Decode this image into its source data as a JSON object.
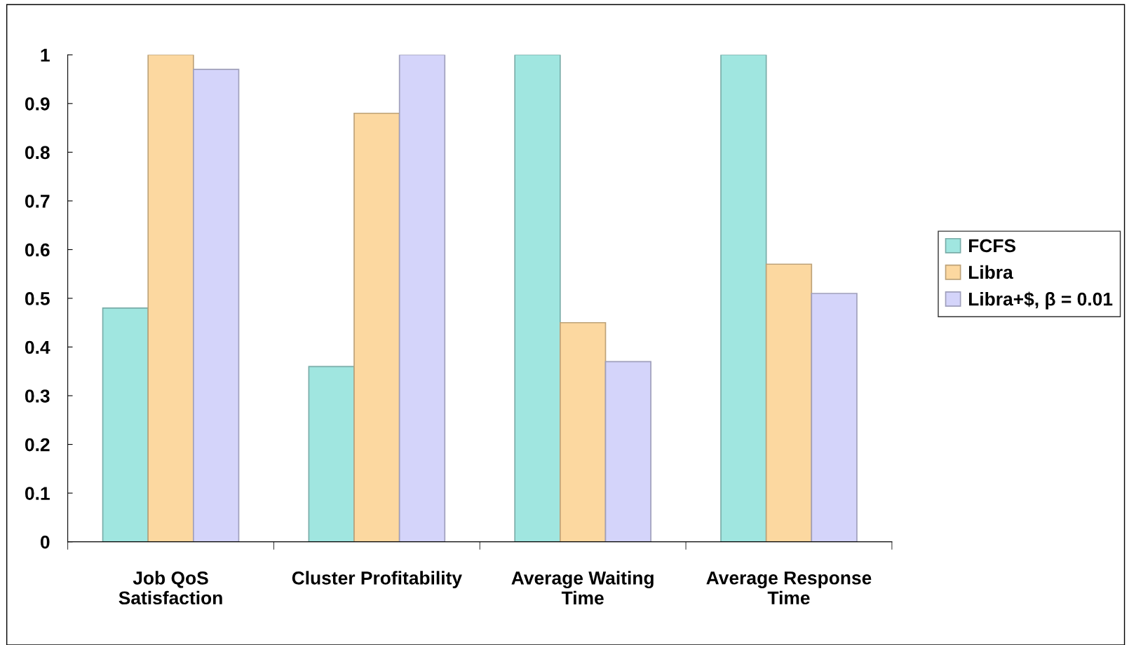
{
  "chart_data": {
    "type": "bar",
    "categories": [
      "Job QoS\nSatisfaction",
      "Cluster Profitability",
      "Average Waiting\nTime",
      "Average Response\nTime"
    ],
    "series": [
      {
        "name": "FCFS",
        "color": "#a0e6e0",
        "values": [
          0.48,
          0.36,
          1.0,
          1.0
        ]
      },
      {
        "name": "Libra",
        "color": "#fcd8a0",
        "values": [
          1.0,
          0.88,
          0.45,
          0.57
        ]
      },
      {
        "name": "Libra+$, β = 0.01",
        "color": "#d4d4fa",
        "values": [
          0.97,
          1.0,
          0.37,
          0.51
        ]
      }
    ],
    "ylim": [
      0,
      1
    ],
    "yticks": [
      0,
      {
        "value": 0.1,
        "label": "0.1"
      },
      {
        "value": 0.2,
        "label": "0.2"
      },
      {
        "value": 0.3,
        "label": "0.3"
      },
      {
        "value": 0.4,
        "label": "0.4"
      },
      {
        "value": 0.5,
        "label": "0.5"
      },
      {
        "value": 0.6,
        "label": "0.6"
      },
      {
        "value": 0.7,
        "label": "0.7"
      },
      {
        "value": 0.8,
        "label": "0.8"
      },
      {
        "value": 0.9,
        "label": "0.9"
      },
      1
    ],
    "grid": false,
    "legend": "right"
  }
}
